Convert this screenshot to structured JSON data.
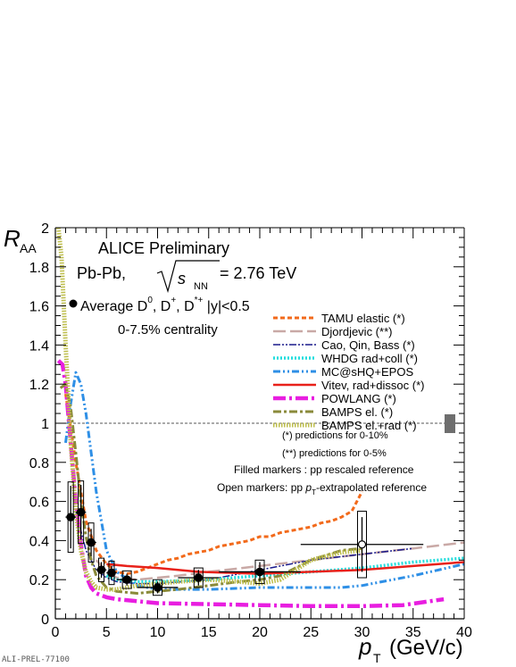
{
  "chart_data": {
    "type": "line",
    "title": "ALICE Preliminary",
    "collision": "Pb-Pb,",
    "energy": {
      "root": "s",
      "sub": "NN",
      "value": "= 2.76 TeV"
    },
    "data_label": {
      "prefix": "Average D",
      "d0_sup": "0",
      "sep1": ", D",
      "dplus_sup": "+",
      "sep2": ", D",
      "dstar_sup": "*+",
      "rapidity": " |y|<0.5"
    },
    "centrality": "0-7.5% centrality",
    "notes": [
      "(*) predictions for 0-10%",
      "(**) predictions for 0-5%",
      "Filled markers : pp rescaled reference",
      "Open markers: pp  p_T-extrapolated reference"
    ],
    "ylabel": {
      "main": "R",
      "sub": "AA"
    },
    "xlabel": {
      "main": "p",
      "sub": "T",
      "unit": "(GeV/c)"
    },
    "xlim": [
      0,
      40
    ],
    "ylim": [
      0,
      2
    ],
    "x_ticks": [
      0,
      5,
      10,
      15,
      20,
      25,
      30,
      35,
      40
    ],
    "y_ticks": [
      0,
      0.2,
      0.4,
      0.6,
      0.8,
      1,
      1.2,
      1.4,
      1.6,
      1.8,
      2
    ],
    "reference_line": 1,
    "legend_position": "right",
    "data_filled": {
      "x": [
        1.5,
        2.5,
        3.5,
        4.5,
        5.5,
        7,
        10,
        14,
        20
      ],
      "y": [
        0.52,
        0.545,
        0.39,
        0.25,
        0.235,
        0.2,
        0.16,
        0.21,
        0.24
      ],
      "xerr": [
        0.5,
        0.5,
        0.5,
        0.5,
        0.5,
        1,
        2,
        2,
        4
      ],
      "stat": [
        0.16,
        0.14,
        0.07,
        0.04,
        0.035,
        0.03,
        0.03,
        0.04,
        0.05
      ],
      "syst": [
        0.18,
        0.16,
        0.1,
        0.06,
        0.06,
        0.045,
        0.04,
        0.05,
        0.06
      ]
    },
    "data_open": {
      "x": [
        30
      ],
      "y": [
        0.38
      ],
      "xerr": [
        6
      ],
      "stat": [
        0.14
      ],
      "syst": [
        0.17
      ]
    },
    "models": [
      {
        "name": "TAMU elastic (*)",
        "color": "#f26a1b",
        "x": [
          1,
          2,
          3,
          4,
          5,
          6,
          7,
          8,
          9,
          10,
          11,
          12,
          13,
          14,
          15,
          16,
          17,
          18,
          19,
          20,
          21,
          22,
          23,
          24,
          25,
          26,
          27,
          28,
          29,
          30
        ],
        "y": [
          1.15,
          0.8,
          0.5,
          0.35,
          0.28,
          0.24,
          0.23,
          0.24,
          0.26,
          0.28,
          0.3,
          0.31,
          0.33,
          0.34,
          0.35,
          0.37,
          0.38,
          0.39,
          0.4,
          0.42,
          0.42,
          0.44,
          0.45,
          0.46,
          0.47,
          0.49,
          0.5,
          0.52,
          0.55,
          0.65
        ]
      },
      {
        "name": "Djordjevic (**)",
        "color": "#c9a9a6",
        "x": [
          4,
          5,
          6,
          8,
          10,
          12,
          15,
          20,
          25,
          30,
          35,
          40
        ],
        "y": [
          0.3,
          0.24,
          0.21,
          0.2,
          0.21,
          0.22,
          0.24,
          0.27,
          0.3,
          0.33,
          0.36,
          0.39
        ]
      },
      {
        "name": "Cao, Qin, Bass (*)",
        "color": "#1a1a8c",
        "x": [
          2,
          3,
          4,
          5,
          6,
          8,
          10,
          15,
          20,
          25,
          30,
          35
        ],
        "y": [
          0.55,
          0.35,
          0.25,
          0.21,
          0.19,
          0.18,
          0.18,
          0.2,
          0.25,
          0.3,
          0.33,
          0.36
        ]
      },
      {
        "name": "WHDG rad+coll (*)",
        "color": "#22dddd",
        "x": [
          5,
          6,
          8,
          10,
          15,
          20,
          25,
          30,
          35,
          40
        ],
        "y": [
          0.22,
          0.2,
          0.19,
          0.19,
          0.2,
          0.22,
          0.24,
          0.26,
          0.29,
          0.31
        ]
      },
      {
        "name": "MC@sHQ+EPOS",
        "color": "#2e8fe6",
        "x": [
          1,
          1.5,
          2,
          2.5,
          3,
          3.5,
          4,
          5,
          6,
          8,
          10,
          12,
          15,
          20,
          25,
          28,
          30,
          35,
          40
        ],
        "y": [
          0.9,
          1.1,
          1.26,
          1.2,
          1.05,
          0.85,
          0.65,
          0.35,
          0.24,
          0.17,
          0.15,
          0.15,
          0.15,
          0.16,
          0.16,
          0.16,
          0.17,
          0.22,
          0.28
        ]
      },
      {
        "name": "Vitev, rad+dissoc (*)",
        "color": "#e8211a",
        "x": [
          5,
          7,
          10,
          14,
          20,
          25,
          30,
          35,
          40
        ],
        "y": [
          0.28,
          0.27,
          0.26,
          0.24,
          0.23,
          0.24,
          0.25,
          0.27,
          0.29
        ]
      },
      {
        "name": "POWLANG (*)",
        "color": "#e81ee0",
        "x": [
          0.3,
          0.7,
          1,
          1.5,
          2,
          2.5,
          3,
          3.5,
          4,
          5,
          6,
          8,
          10,
          15,
          20,
          25,
          30,
          34,
          38
        ],
        "y": [
          1.32,
          1.3,
          1.2,
          0.9,
          0.6,
          0.38,
          0.22,
          0.16,
          0.13,
          0.11,
          0.1,
          0.09,
          0.08,
          0.075,
          0.07,
          0.065,
          0.065,
          0.07,
          0.1
        ]
      },
      {
        "name": "BAMPS el. (*)",
        "color": "#8a8a3a",
        "x": [
          0.5,
          1,
          1.5,
          2,
          2.5,
          3,
          3.5,
          4,
          5,
          6,
          8,
          10,
          12,
          15,
          18,
          20,
          22,
          25,
          28,
          30
        ],
        "y": [
          1.18,
          1.2,
          1.08,
          0.85,
          0.6,
          0.42,
          0.3,
          0.22,
          0.16,
          0.14,
          0.13,
          0.14,
          0.15,
          0.17,
          0.19,
          0.2,
          0.22,
          0.3,
          0.35,
          0.36
        ]
      },
      {
        "name": "BAMPS el.+rad (*)",
        "color": "#bdbd4a",
        "x": [
          0.3,
          0.6,
          1,
          1.5,
          2,
          2.5,
          3,
          3.5,
          4,
          5,
          6,
          7,
          8,
          10,
          12,
          15,
          18,
          20,
          22,
          25,
          28,
          30
        ],
        "y": [
          2,
          1.85,
          1.4,
          0.9,
          0.55,
          0.35,
          0.24,
          0.19,
          0.16,
          0.15,
          0.15,
          0.16,
          0.17,
          0.18,
          0.19,
          0.2,
          0.19,
          0.18,
          0.2,
          0.3,
          0.34,
          0.35
        ]
      }
    ]
  },
  "footer": {
    "preliminary_id": "ALI-PREL-77100"
  }
}
